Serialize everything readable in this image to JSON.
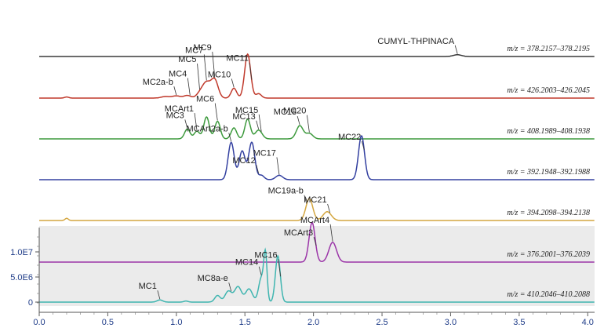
{
  "chart_data": {
    "type": "line",
    "title": "",
    "xlabel": "",
    "ylabel": "",
    "xlim": [
      0.0,
      4.05
    ],
    "x_ticks": [
      "0.0",
      "0.5",
      "1.0",
      "1.5",
      "2.0",
      "2.5",
      "3.0",
      "3.5",
      "4.0"
    ],
    "y_ticks": [
      {
        "label": "0",
        "value": 0
      },
      {
        "label": "5.0E6",
        "value": 5000000
      },
      {
        "label": "1.0E7",
        "value": 10000000
      }
    ],
    "grid": false,
    "background_band_color": "#ebebeb",
    "series": [
      {
        "color": "#3a3a3a",
        "mz_label": "m/z = 378.2157–378.2195",
        "peaks": [
          {
            "x": 3.05,
            "h": 0.08,
            "w": 0.03
          }
        ],
        "annotations": [
          {
            "text": "CUMYL-THPINACA",
            "peak_x": 3.05
          }
        ]
      },
      {
        "color": "#c0392b",
        "mz_label": "m/z = 426.2003–426.2045",
        "peaks": [
          {
            "x": 0.2,
            "h": 0.05,
            "w": 0.015
          },
          {
            "x": 0.92,
            "h": 0.07,
            "w": 0.03
          },
          {
            "x": 1.0,
            "h": 0.1,
            "w": 0.03
          },
          {
            "x": 1.08,
            "h": 0.12,
            "w": 0.025
          },
          {
            "x": 1.17,
            "h": 0.18,
            "w": 0.025
          },
          {
            "x": 1.22,
            "h": 0.7,
            "w": 0.03
          },
          {
            "x": 1.28,
            "h": 0.8,
            "w": 0.025
          },
          {
            "x": 1.42,
            "h": 0.45,
            "w": 0.02
          },
          {
            "x": 1.52,
            "h": 2.0,
            "w": 0.022
          },
          {
            "x": 1.6,
            "h": 0.2,
            "w": 0.02
          }
        ],
        "annotations": [
          {
            "text": "MC2a-b",
            "peak_x": 1.0
          },
          {
            "text": "MC4",
            "peak_x": 1.1
          },
          {
            "text": "MC5",
            "peak_x": 1.17
          },
          {
            "text": "MC7",
            "peak_x": 1.22
          },
          {
            "text": "MC9",
            "peak_x": 1.28
          },
          {
            "text": "MC10",
            "peak_x": 1.42
          },
          {
            "text": "MC11",
            "peak_x": 1.55
          }
        ]
      },
      {
        "color": "#3d9a3d",
        "mz_label": "m/z = 408.1989–408.1938",
        "peaks": [
          {
            "x": 1.08,
            "h": 0.45,
            "w": 0.02
          },
          {
            "x": 1.15,
            "h": 0.35,
            "w": 0.02
          },
          {
            "x": 1.22,
            "h": 1.0,
            "w": 0.02
          },
          {
            "x": 1.3,
            "h": 0.8,
            "w": 0.02
          },
          {
            "x": 1.42,
            "h": 0.5,
            "w": 0.02
          },
          {
            "x": 1.52,
            "h": 0.9,
            "w": 0.02
          },
          {
            "x": 1.6,
            "h": 0.4,
            "w": 0.025
          },
          {
            "x": 1.9,
            "h": 0.6,
            "w": 0.025
          },
          {
            "x": 1.97,
            "h": 0.25,
            "w": 0.025
          }
        ],
        "annotations": [
          {
            "text": "MC3",
            "peak_x": 1.08
          },
          {
            "text": "MCArt1",
            "peak_x": 1.15
          },
          {
            "text": "MC6",
            "peak_x": 1.3
          },
          {
            "text": "MC13",
            "peak_x": 1.6
          },
          {
            "text": "MC15",
            "peak_x": 1.62
          },
          {
            "text": "MC18",
            "peak_x": 1.9
          },
          {
            "text": "MC20",
            "peak_x": 1.97
          }
        ]
      },
      {
        "color": "#3340a0",
        "mz_label": "m/z = 392.1948–392.1988",
        "peaks": [
          {
            "x": 1.4,
            "h": 1.7,
            "w": 0.022
          },
          {
            "x": 1.48,
            "h": 1.3,
            "w": 0.022
          },
          {
            "x": 1.55,
            "h": 1.7,
            "w": 0.022
          },
          {
            "x": 1.62,
            "h": 0.2,
            "w": 0.02
          },
          {
            "x": 1.75,
            "h": 0.2,
            "w": 0.025
          },
          {
            "x": 2.35,
            "h": 2.0,
            "w": 0.022
          }
        ],
        "annotations": [
          {
            "text": "MCArt2a-b",
            "peak_x": 1.4
          },
          {
            "text": "MC12",
            "peak_x": 1.6
          },
          {
            "text": "MC17",
            "peak_x": 1.75
          },
          {
            "text": "MC22",
            "peak_x": 2.37
          }
        ]
      },
      {
        "color": "#d4a640",
        "mz_label": "m/z = 394.2098–394.2138",
        "peaks": [
          {
            "x": 0.2,
            "h": 0.1,
            "w": 0.012
          },
          {
            "x": 1.97,
            "h": 1.0,
            "w": 0.025
          },
          {
            "x": 2.1,
            "h": 0.4,
            "w": 0.03
          }
        ],
        "annotations": [
          {
            "text": "MC19a-b",
            "peak_x": 1.95
          },
          {
            "text": "MC21",
            "peak_x": 2.12
          }
        ]
      },
      {
        "color": "#9b35a8",
        "mz_label": "m/z = 376.2001–376.2039",
        "peaks": [
          {
            "x": 1.99,
            "h": 1.8,
            "w": 0.022
          },
          {
            "x": 2.14,
            "h": 0.9,
            "w": 0.028
          }
        ],
        "annotations": [
          {
            "text": "MCArt3",
            "peak_x": 2.02
          },
          {
            "text": "MCArt4",
            "peak_x": 2.14
          }
        ]
      },
      {
        "color": "#3fb5b0",
        "mz_label": "m/z = 410.2046–410.2088",
        "peaks": [
          {
            "x": 0.88,
            "h": 0.1,
            "w": 0.02
          },
          {
            "x": 1.07,
            "h": 0.05,
            "w": 0.015
          },
          {
            "x": 1.3,
            "h": 0.3,
            "w": 0.02
          },
          {
            "x": 1.38,
            "h": 0.5,
            "w": 0.025
          },
          {
            "x": 1.45,
            "h": 0.7,
            "w": 0.025
          },
          {
            "x": 1.53,
            "h": 0.6,
            "w": 0.025
          },
          {
            "x": 1.62,
            "h": 1.1,
            "w": 0.02
          },
          {
            "x": 1.65,
            "h": 2.0,
            "w": 0.012
          },
          {
            "x": 1.74,
            "h": 2.1,
            "w": 0.018
          }
        ],
        "annotations": [
          {
            "text": "MC1",
            "peak_x": 0.88
          },
          {
            "text": "MC8a-e",
            "peak_x": 1.4
          },
          {
            "text": "MC14",
            "peak_x": 1.62
          },
          {
            "text": "MC16",
            "peak_x": 1.76
          }
        ]
      }
    ]
  }
}
